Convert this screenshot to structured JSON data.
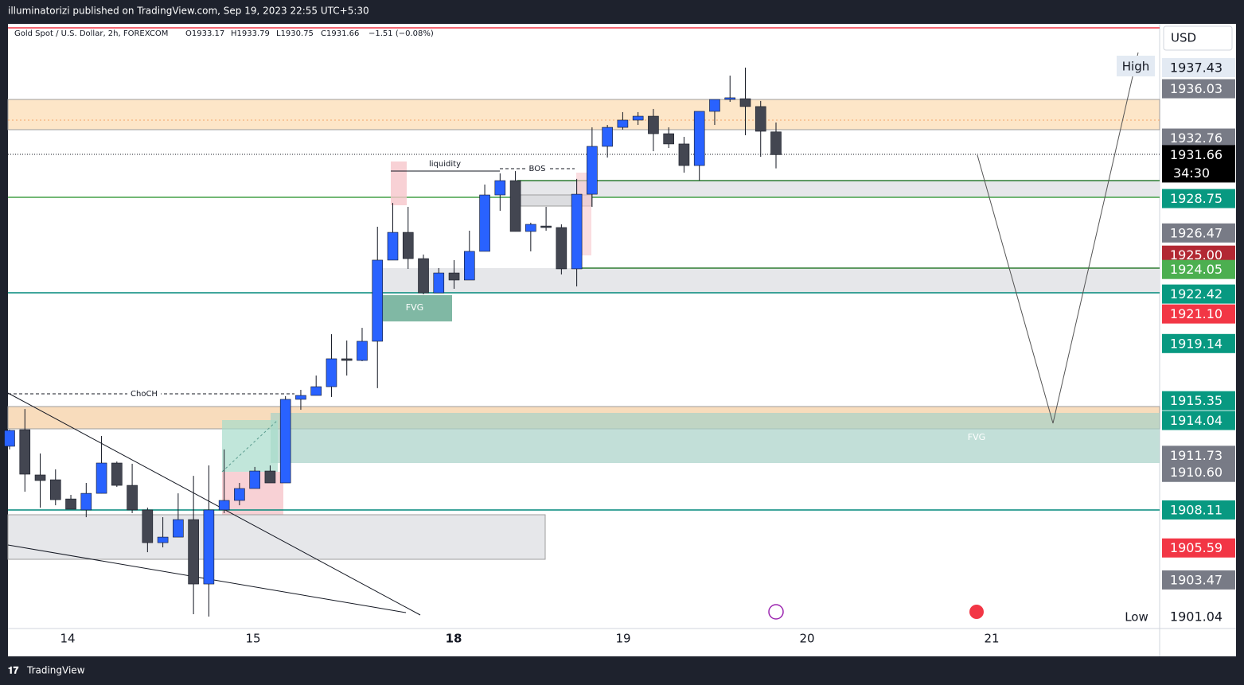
{
  "chart_data": {
    "type": "candlestick",
    "publisher": "illuminatorizi published on TradingView.com, Sep 19, 2023 22:55 UTC+5:30",
    "legend": {
      "symbol": "Gold Spot / U.S. Dollar, 2h, FOREXCOM",
      "open": "O1933.17",
      "high": "H1933.79",
      "low": "L1930.75",
      "close": "C1931.66",
      "change": "−1.51 (−0.08%)"
    },
    "currency": "USD",
    "countdown": "34:30",
    "brand": "TradingView",
    "annotations": {
      "liquidity": "liquidity",
      "bos": "BOS",
      "choch": "ChoCH",
      "fvg_upper": "FVG",
      "fvg_lower": "FVG",
      "high": "High",
      "low": "Low"
    },
    "x_labels": [
      "14",
      "15",
      "18",
      "19",
      "20",
      "21"
    ],
    "ylim": [
      1900.25,
      1940.33
    ],
    "up_color": "#2962ff",
    "down_color": "#434651",
    "open": [
      1912.33,
      1913.43,
      1910.43,
      1910.11,
      1908.84,
      1908.11,
      1909.21,
      1911.22,
      1909.74,
      1908.11,
      1905.94,
      1906.31,
      1907.47,
      1903.2,
      1908.11,
      1908.74,
      1909.53,
      1910.69,
      1909.9,
      1915.44,
      1915.7,
      1916.28,
      1918.13,
      1918.02,
      1919.29,
      1924.67,
      1926.51,
      1924.77,
      1922.5,
      1923.82,
      1923.35,
      1925.25,
      1928.99,
      1929.94,
      1926.57,
      1926.93,
      1926.83,
      1924.09,
      1929.04,
      1932.21,
      1933.47,
      1933.95,
      1934.21,
      1933.05,
      1932.37,
      1930.94,
      1934.53,
      1935.32,
      1935.37,
      1934.85,
      1933.17
    ],
    "high": [
      1913.43,
      1914.8,
      1911.85,
      1910.8,
      1909.11,
      1909.9,
      1913.01,
      1911.32,
      1911.17,
      1908.26,
      1907.63,
      1909.21,
      1910.37,
      1911.06,
      1912.12,
      1909.9,
      1910.96,
      1911.06,
      1915.65,
      1916.07,
      1917.02,
      1919.76,
      1919.34,
      1920.18,
      1926.88,
      1928.46,
      1928.2,
      1925.04,
      1924.14,
      1924.67,
      1926.62,
      1929.68,
      1930.42,
      1930.57,
      1927.15,
      1928.2,
      1927.04,
      1930.05,
      1933.47,
      1933.63,
      1934.48,
      1934.48,
      1934.69,
      1933.47,
      1932.84,
      1934.53,
      1935.32,
      1936.9,
      1937.43,
      1935.22,
      1933.79
    ],
    "low": [
      1912.12,
      1909.32,
      1908.26,
      1908.42,
      1908.16,
      1907.63,
      1909.21,
      1909.64,
      1907.9,
      1905.31,
      1905.63,
      1906.31,
      1901.2,
      1901.04,
      1907.9,
      1908.42,
      1909.53,
      1909.9,
      1909.9,
      1914.75,
      1915.7,
      1915.6,
      1917.02,
      1917.97,
      1916.18,
      1924.67,
      1924.09,
      1922.4,
      1922.5,
      1922.77,
      1923.35,
      1925.25,
      1927.94,
      1926.57,
      1925.25,
      1926.62,
      1923.72,
      1922.93,
      1928.2,
      1931.47,
      1933.32,
      1933.63,
      1931.89,
      1932.1,
      1930.47,
      1929.94,
      1933.63,
      1935.16,
      1932.95,
      1931.52,
      1930.75
    ],
    "close": [
      1913.38,
      1910.48,
      1910.06,
      1908.79,
      1908.16,
      1909.21,
      1911.22,
      1909.74,
      1908.11,
      1905.94,
      1906.31,
      1907.47,
      1903.2,
      1908.11,
      1908.74,
      1909.53,
      1910.69,
      1909.9,
      1915.44,
      1915.7,
      1916.28,
      1918.13,
      1918.02,
      1919.29,
      1924.67,
      1926.51,
      1924.77,
      1922.5,
      1923.82,
      1923.35,
      1925.25,
      1928.99,
      1929.94,
      1926.57,
      1927.04,
      1926.83,
      1924.09,
      1929.04,
      1932.21,
      1933.47,
      1933.95,
      1934.21,
      1933.05,
      1932.37,
      1930.94,
      1934.53,
      1935.32,
      1935.43,
      1934.85,
      1933.21,
      1931.66
    ],
    "price_labels": [
      1937.43,
      1936.03,
      1932.76,
      1931.66,
      1928.75,
      1926.47,
      {
        "value": 1925,
        "label": "1925.00"
      },
      1924.05,
      1922.42,
      {
        "value": 1921.1,
        "label": "1921.10"
      },
      1919.14,
      1915.35,
      1914.04,
      1911.73,
      {
        "value": 1910.6,
        "label": "1910.60"
      },
      1908.11,
      1905.59,
      1903.47,
      1901.04
    ],
    "price_label_colors": [
      "#e3eaf3",
      "#787b86",
      "#787b86",
      "#000000",
      "#089981",
      "#787b86",
      "#b22833",
      "#4caf50",
      "#089981",
      "#f23645",
      "#089981",
      "#089981",
      "#089981",
      "#787b86",
      "#787b86",
      "#089981",
      "#f23645",
      "#787b86",
      "#ffffff"
    ]
  }
}
